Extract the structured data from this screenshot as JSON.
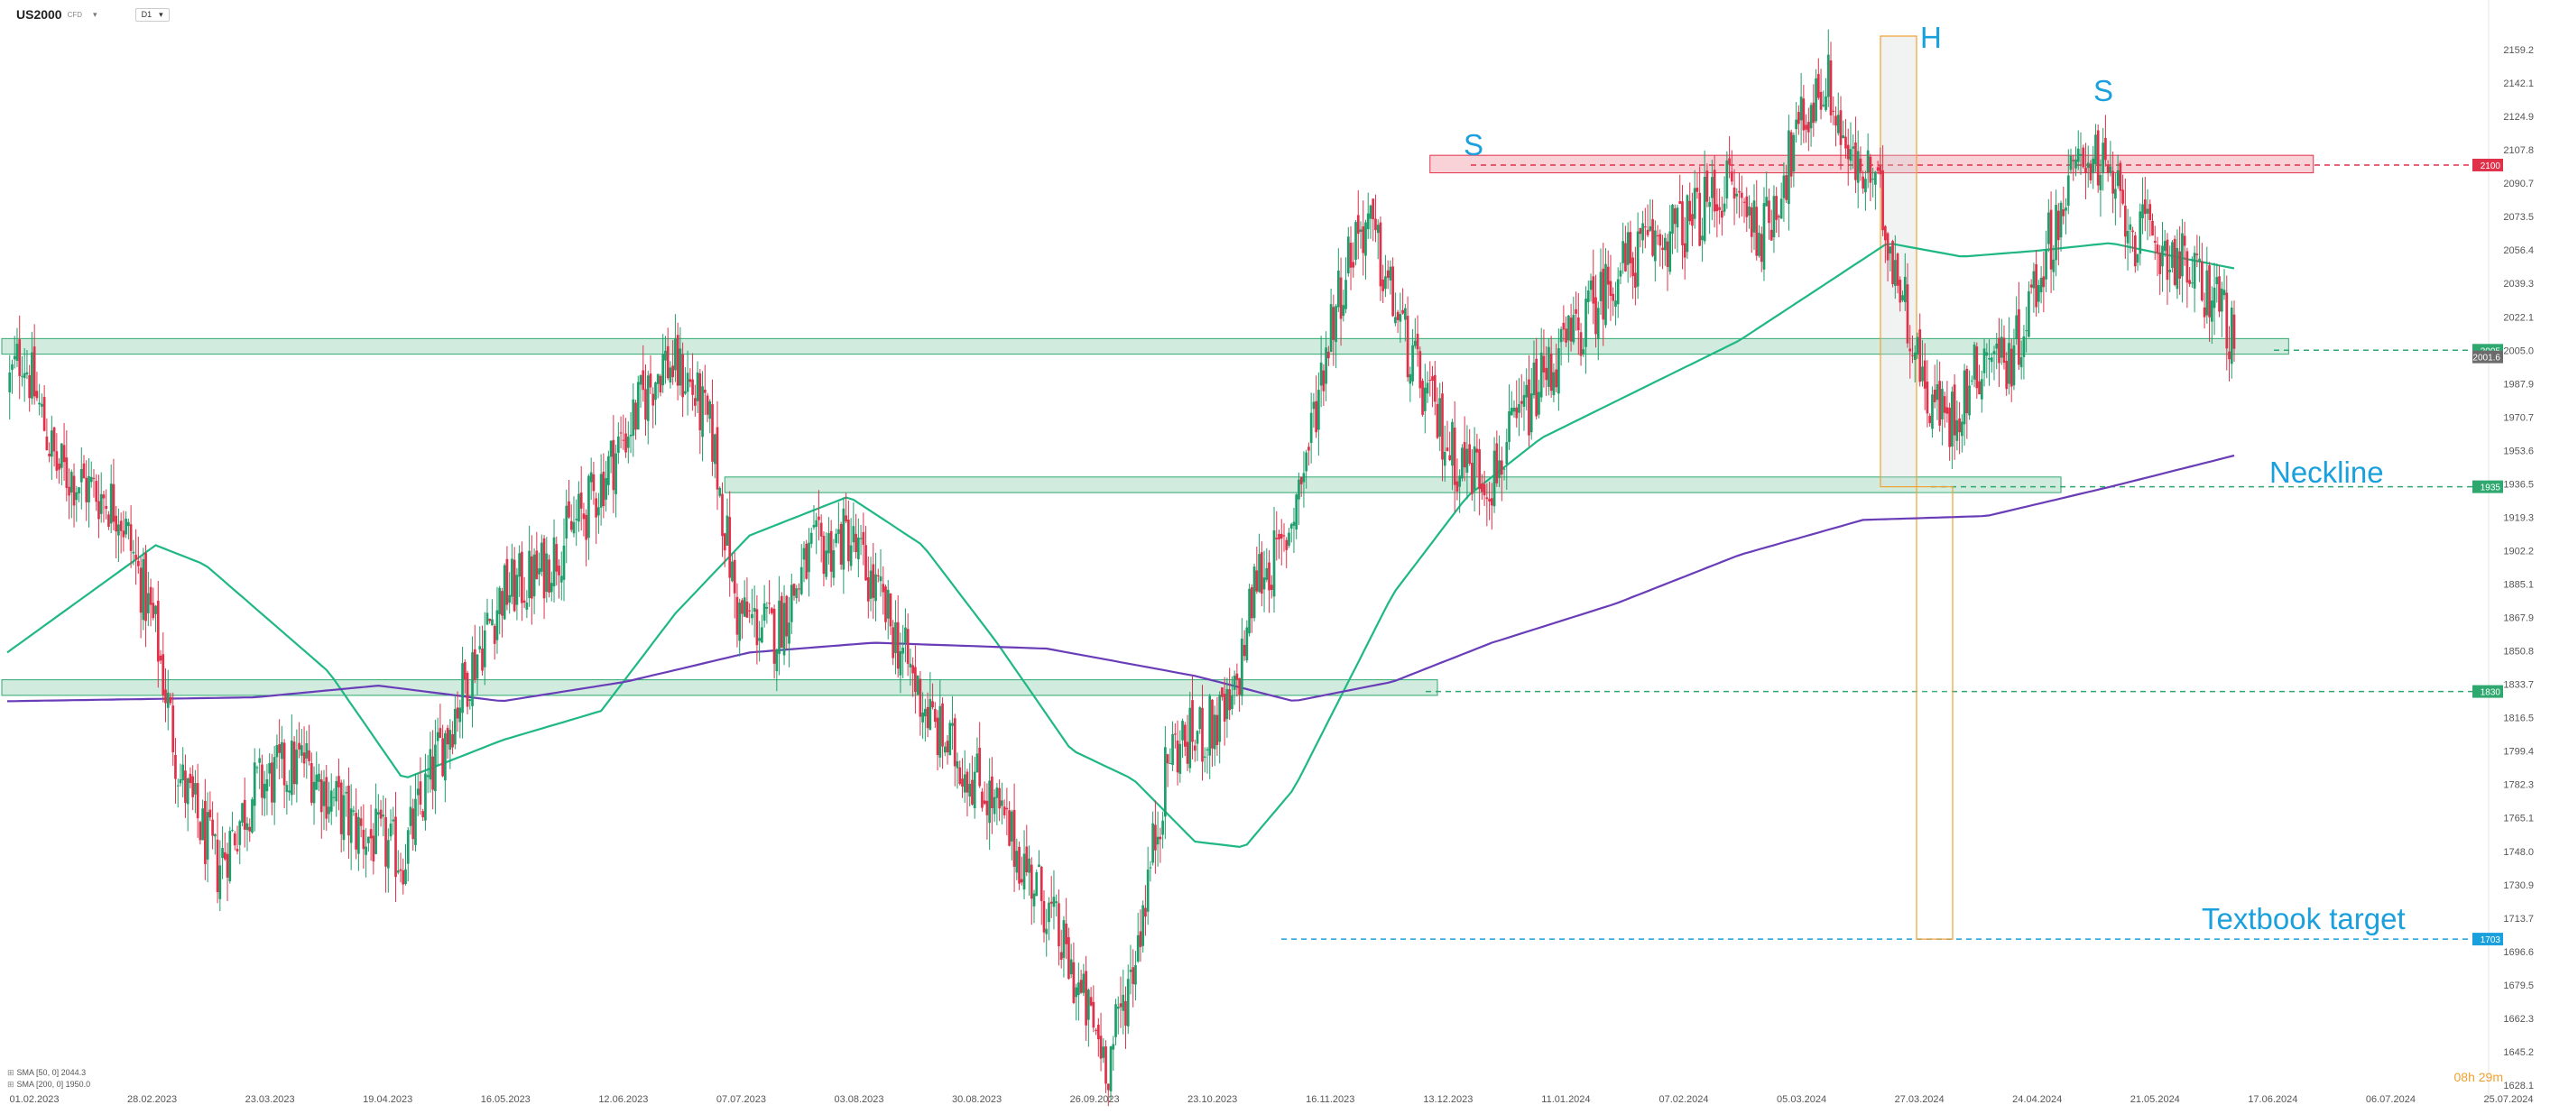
{
  "header": {
    "symbol": "US2000",
    "symbol_sup": "CFD",
    "timeframe": "D1"
  },
  "legend": {
    "sma50": "SMA [50, 0]  2044.3",
    "sma200": "SMA [200, 0]  1950.0"
  },
  "timer": "08h 29m",
  "icons": [
    "caret-down-icon",
    "indicator-settings-icon"
  ],
  "colors": {
    "bull": "#1e9e6a",
    "bear": "#e0314a",
    "zone_green": "#2ea86f",
    "zone_red": "#e0314a",
    "sma50": "#1fb884",
    "sma200": "#6a3db8",
    "annotation": "#1aa0dc",
    "highlight": "#f0a030"
  },
  "chart_data": {
    "type": "candlestick",
    "y_axis": {
      "min": 1628.1,
      "max": 2159.2,
      "ticks": [
        "2159.2",
        "2142.1",
        "2124.9",
        "2107.8",
        "2090.7",
        "2073.5",
        "2056.4",
        "2039.3",
        "2022.1",
        "2005.0",
        "1987.9",
        "1970.7",
        "1953.6",
        "1936.5",
        "1919.3",
        "1902.2",
        "1885.1",
        "1867.9",
        "1850.8",
        "1833.7",
        "1816.5",
        "1799.4",
        "1782.3",
        "1765.1",
        "1748.0",
        "1730.9",
        "1713.7",
        "1696.6",
        "1679.5",
        "1662.3",
        "1645.2",
        "1628.1"
      ]
    },
    "x_axis": {
      "ticks": [
        "01.02.2023",
        "28.02.2023",
        "23.03.2023",
        "19.04.2023",
        "16.05.2023",
        "12.06.2023",
        "07.07.2023",
        "03.08.2023",
        "30.08.2023",
        "26.09.2023",
        "23.10.2023",
        "16.11.2023",
        "13.12.2023",
        "11.01.2024",
        "07.02.2024",
        "05.03.2024",
        "27.03.2024",
        "24.04.2024",
        "21.05.2024",
        "17.06.2024",
        "06.07.2024",
        "25.07.2024"
      ]
    },
    "price_path": [
      [
        0,
        1985
      ],
      [
        6,
        2005
      ],
      [
        20,
        1945
      ],
      [
        45,
        1925
      ],
      [
        60,
        1860
      ],
      [
        70,
        1785
      ],
      [
        85,
        1740
      ],
      [
        100,
        1780
      ],
      [
        120,
        1795
      ],
      [
        140,
        1760
      ],
      [
        160,
        1745
      ],
      [
        175,
        1800
      ],
      [
        185,
        1835
      ],
      [
        200,
        1880
      ],
      [
        215,
        1890
      ],
      [
        235,
        1925
      ],
      [
        255,
        1975
      ],
      [
        265,
        2000
      ],
      [
        275,
        1990
      ],
      [
        285,
        1960
      ],
      [
        295,
        1870
      ],
      [
        310,
        1860
      ],
      [
        325,
        1900
      ],
      [
        340,
        1910
      ],
      [
        355,
        1870
      ],
      [
        375,
        1810
      ],
      [
        395,
        1780
      ],
      [
        420,
        1720
      ],
      [
        435,
        1670
      ],
      [
        445,
        1640
      ],
      [
        455,
        1690
      ],
      [
        470,
        1800
      ],
      [
        485,
        1810
      ],
      [
        495,
        1820
      ],
      [
        505,
        1890
      ],
      [
        515,
        1900
      ],
      [
        525,
        1950
      ],
      [
        535,
        2020
      ],
      [
        545,
        2065
      ],
      [
        550,
        2070
      ],
      [
        560,
        2030
      ],
      [
        570,
        1990
      ],
      [
        585,
        1950
      ],
      [
        600,
        1940
      ],
      [
        610,
        1965
      ],
      [
        620,
        1990
      ],
      [
        635,
        2015
      ],
      [
        650,
        2045
      ],
      [
        665,
        2060
      ],
      [
        680,
        2070
      ],
      [
        695,
        2090
      ],
      [
        710,
        2065
      ],
      [
        725,
        2120
      ],
      [
        735,
        2145
      ],
      [
        745,
        2100
      ],
      [
        755,
        2090
      ],
      [
        765,
        2040
      ],
      [
        775,
        1985
      ],
      [
        785,
        1968
      ],
      [
        800,
        2005
      ],
      [
        810,
        2000
      ],
      [
        825,
        2060
      ],
      [
        840,
        2110
      ],
      [
        850,
        2090
      ],
      [
        860,
        2065
      ],
      [
        875,
        2055
      ],
      [
        885,
        2040
      ],
      [
        895,
        2030
      ],
      [
        900,
        2005
      ]
    ],
    "series": [
      {
        "name": "SMA [50, 0]",
        "points": [
          [
            0,
            1850
          ],
          [
            60,
            1905
          ],
          [
            80,
            1895
          ],
          [
            130,
            1840
          ],
          [
            160,
            1785
          ],
          [
            200,
            1805
          ],
          [
            240,
            1820
          ],
          [
            270,
            1870
          ],
          [
            300,
            1910
          ],
          [
            340,
            1930
          ],
          [
            370,
            1905
          ],
          [
            400,
            1855
          ],
          [
            430,
            1800
          ],
          [
            455,
            1785
          ],
          [
            480,
            1753
          ],
          [
            500,
            1750
          ],
          [
            520,
            1780
          ],
          [
            540,
            1830
          ],
          [
            560,
            1880
          ],
          [
            590,
            1930
          ],
          [
            620,
            1960
          ],
          [
            660,
            1985
          ],
          [
            700,
            2010
          ],
          [
            730,
            2035
          ],
          [
            760,
            2060
          ],
          [
            790,
            2053
          ],
          [
            820,
            2056
          ],
          [
            850,
            2060
          ],
          [
            880,
            2052
          ],
          [
            900,
            2047
          ]
        ]
      },
      {
        "name": "SMA [200, 0]",
        "points": [
          [
            0,
            1825
          ],
          [
            100,
            1827
          ],
          [
            150,
            1833
          ],
          [
            200,
            1825
          ],
          [
            250,
            1835
          ],
          [
            300,
            1850
          ],
          [
            350,
            1855
          ],
          [
            420,
            1852
          ],
          [
            480,
            1838
          ],
          [
            520,
            1825
          ],
          [
            560,
            1835
          ],
          [
            600,
            1855
          ],
          [
            650,
            1875
          ],
          [
            700,
            1900
          ],
          [
            750,
            1918
          ],
          [
            800,
            1920
          ],
          [
            850,
            1935
          ],
          [
            900,
            1951
          ]
        ]
      }
    ],
    "levels": [
      {
        "label": "2100",
        "value": 2100,
        "color": "#e0314a"
      },
      {
        "label": "2005",
        "value": 2005,
        "color": "#2ea86f"
      },
      {
        "label": "1935",
        "value": 1935,
        "color": "#2ea86f"
      },
      {
        "label": "1830",
        "value": 1830,
        "color": "#2ea86f"
      },
      {
        "label": "1703",
        "value": 1703,
        "color": "#1aa0dc"
      }
    ],
    "current_price": "2001.6",
    "zones": [
      {
        "low": 2003,
        "high": 2011,
        "from": 0,
        "to": 922,
        "color": "#2ea86f"
      },
      {
        "low": 1932,
        "high": 1940,
        "from": 290,
        "to": 830,
        "color": "#2ea86f"
      },
      {
        "low": 1828,
        "high": 1836,
        "from": 0,
        "to": 578,
        "color": "#2ea86f"
      },
      {
        "low": 2096,
        "high": 2105,
        "from": 575,
        "to": 932,
        "color": "#e0314a"
      }
    ],
    "annotations": [
      "S",
      "H",
      "S",
      "Neckline",
      "Textbook target"
    ]
  }
}
